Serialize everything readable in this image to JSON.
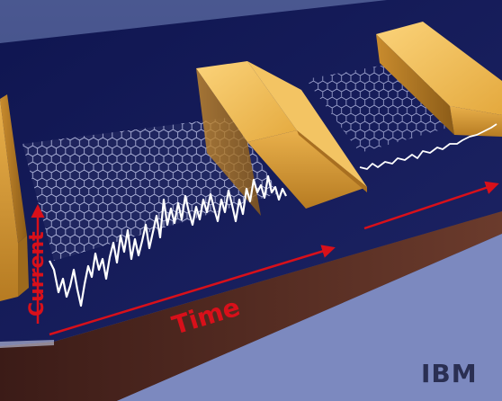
{
  "labels": {
    "current": "Current",
    "time": "Time",
    "logo": "IBM"
  },
  "colors": {
    "background_top": "#4a5a96",
    "background_bottom": "#7f8cc2",
    "substrate_top": "#141a57",
    "substrate_side": "#5a2a22",
    "gold": "#e7b04a",
    "arrow_red": "#d8101a",
    "trace": "#ffffff",
    "graphene_line": "#cfd6ff"
  },
  "icons": [
    "graphene-lattice",
    "gold-electrode",
    "arrow-up",
    "arrow-right"
  ]
}
